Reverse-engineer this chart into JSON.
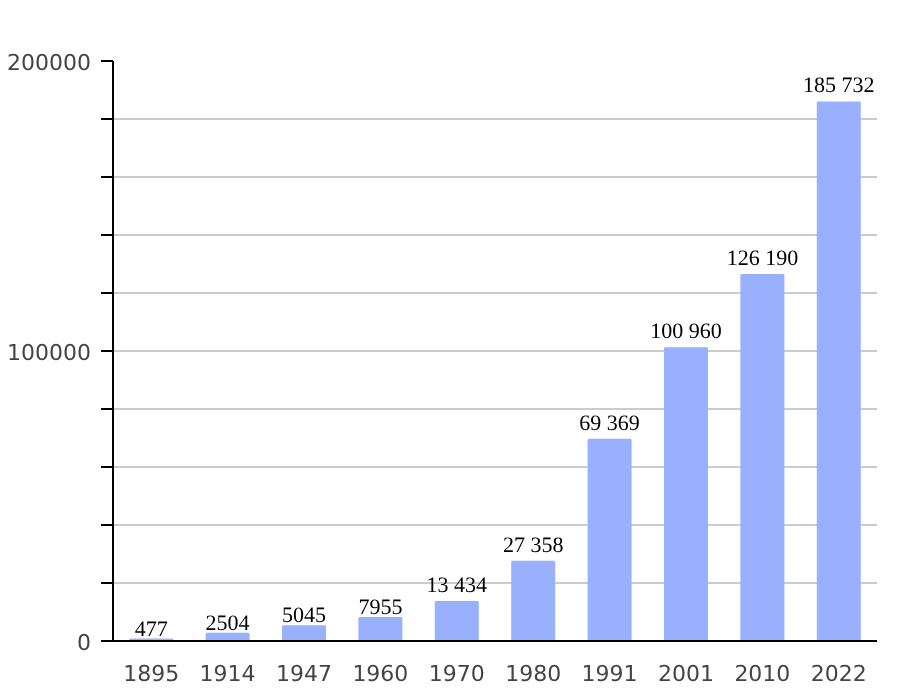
{
  "chart_data": {
    "type": "bar",
    "categories": [
      "1895",
      "1914",
      "1947",
      "1960",
      "1970",
      "1980",
      "1991",
      "2001",
      "2010",
      "2022"
    ],
    "values": [
      477,
      2504,
      5045,
      7955,
      13434,
      27358,
      69369,
      100960,
      126190,
      185732
    ],
    "value_labels": [
      "477",
      "2504",
      "5045",
      "7955",
      "13 434",
      "27 358",
      "69 369",
      "100 960",
      "126 190",
      "185 732"
    ],
    "color": "#99b0ff",
    "ylim": [
      0,
      200000
    ],
    "yticks": [
      0,
      {
        "value": 20000,
        "label": null
      },
      {
        "value": 40000,
        "label": null
      },
      {
        "value": 60000,
        "label": null
      },
      {
        "value": 80000,
        "label": null
      },
      100000,
      {
        "value": 120000,
        "label": null
      },
      {
        "value": 140000,
        "label": null
      },
      {
        "value": 160000,
        "label": null
      },
      {
        "value": 180000,
        "label": null
      },
      200000
    ],
    "grid": "y"
  }
}
